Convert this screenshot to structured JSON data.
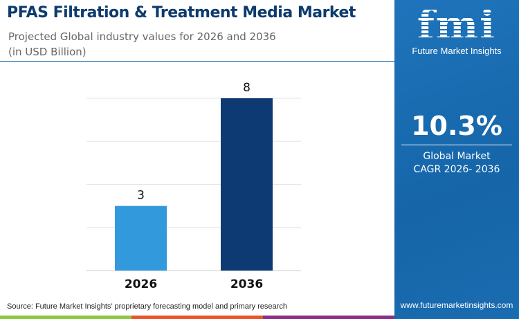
{
  "header": {
    "title": "PFAS Filtration & Treatment Media Market",
    "subtitle": "Projected Global industry values for 2026 and 2036",
    "unit": "(in USD Billion)"
  },
  "brand": {
    "logo_text": "fmi",
    "name": "Future Market Insights",
    "website": "www.futuremarketinsights.com"
  },
  "kpi": {
    "value": "10.3%",
    "label_line1": "Global Market",
    "label_line2": "CAGR 2026- 2036"
  },
  "source": "Source: Future Market Insights’ proprietary forecasting model and primary research",
  "colors": {
    "bar_2026": "#3399dd",
    "bar_2036": "#0d3a73",
    "panel": "#1a6cb0",
    "strip": [
      "#8dc63f",
      "#e8552a",
      "#8b2f86"
    ]
  },
  "chart_data": {
    "type": "bar",
    "categories": [
      "2026",
      "2036"
    ],
    "values": [
      3,
      8
    ],
    "data_labels": [
      "3",
      "8"
    ],
    "ylim": [
      0,
      8
    ],
    "grid": true,
    "title": "Projected Global industry values for 2026 and 2036",
    "ylabel": "(in USD Billion)"
  }
}
